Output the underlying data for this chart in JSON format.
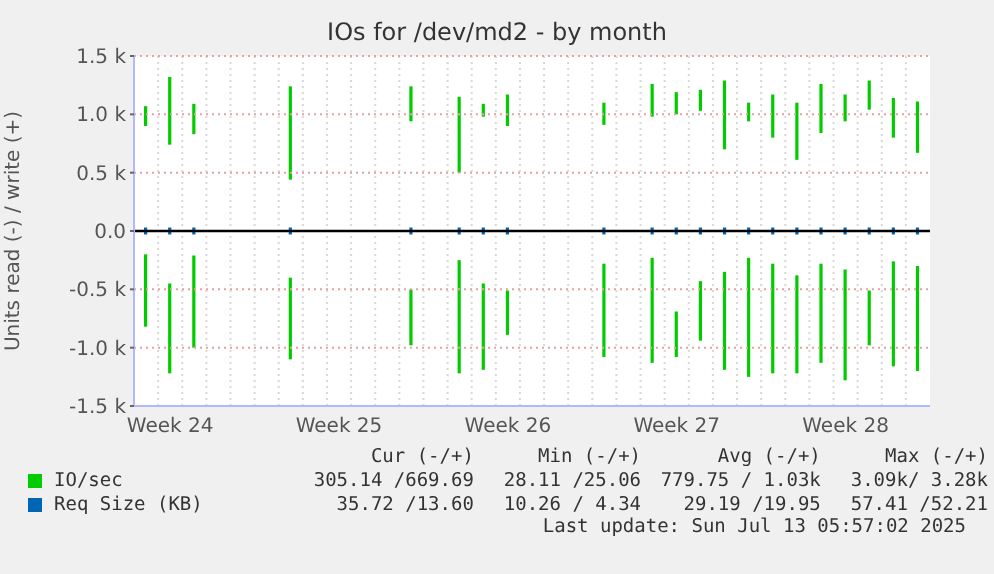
{
  "chart_data": {
    "type": "bar",
    "title": "IOs for /dev/md2 - by month",
    "ylabel": "Units read (-) / write (+)",
    "categories": [
      null,
      "Week 24",
      null,
      null,
      null,
      null,
      null,
      null,
      "Week 25",
      null,
      null,
      null,
      null,
      null,
      null,
      "Week 26",
      null,
      null,
      null,
      null,
      null,
      null,
      "Week 27",
      null,
      null,
      null,
      null,
      null,
      null,
      "Week 28",
      null,
      null,
      null
    ],
    "series": [
      {
        "name": "IO/sec",
        "color": "#00cc00",
        "base": [
          900,
          740,
          830,
          null,
          null,
          null,
          440,
          null,
          null,
          null,
          null,
          940,
          null,
          500,
          980,
          900,
          null,
          null,
          null,
          910,
          null,
          980,
          1000,
          1030,
          700,
          940,
          800,
          610,
          840,
          940,
          1040,
          800,
          670
        ],
        "values": [
          170,
          580,
          260,
          null,
          null,
          null,
          800,
          null,
          null,
          null,
          null,
          300,
          null,
          650,
          110,
          270,
          null,
          null,
          null,
          190,
          null,
          280,
          190,
          180,
          590,
          160,
          370,
          490,
          420,
          230,
          250,
          340,
          440
        ]
      },
      {
        "color": "#00cc00",
        "base": [
          -820,
          -1220,
          -1000,
          null,
          null,
          null,
          -1100,
          null,
          null,
          null,
          null,
          -980,
          null,
          -1220,
          -1190,
          -890,
          null,
          null,
          null,
          -1080,
          null,
          -1130,
          -1080,
          -940,
          -1190,
          -1250,
          -1220,
          -1220,
          -1130,
          -1280,
          -980,
          -1160,
          -1200
        ],
        "values": [
          620,
          770,
          790,
          null,
          null,
          null,
          700,
          null,
          null,
          null,
          null,
          480,
          null,
          970,
          740,
          380,
          null,
          null,
          null,
          800,
          null,
          900,
          390,
          510,
          840,
          1020,
          940,
          840,
          850,
          950,
          470,
          900,
          900
        ]
      },
      {
        "name": "Req Size (KB)",
        "color": "#0066b3",
        "base": [
          -30,
          -30,
          -30,
          null,
          null,
          null,
          -30,
          null,
          null,
          null,
          null,
          -30,
          null,
          -30,
          -30,
          -30,
          null,
          null,
          null,
          -30,
          null,
          -30,
          -30,
          -30,
          -30,
          -30,
          -30,
          -30,
          -30,
          -30,
          -30,
          -30,
          -30
        ],
        "values": [
          60,
          60,
          60,
          null,
          null,
          null,
          60,
          null,
          null,
          null,
          null,
          60,
          null,
          60,
          60,
          60,
          null,
          null,
          null,
          60,
          null,
          60,
          60,
          60,
          60,
          60,
          60,
          60,
          60,
          60,
          60,
          60,
          60
        ]
      }
    ],
    "ylim": [
      -1500,
      1500
    ],
    "yticks": [
      {
        "value": -1500,
        "label": "-1.5 k"
      },
      {
        "value": -1000,
        "label": "-1.0 k"
      },
      {
        "value": -500,
        "label": "-0.5 k"
      },
      {
        "value": 0,
        "label": "0.0"
      },
      {
        "value": 500,
        "label": "0.5 k"
      },
      {
        "value": 1000,
        "label": "1.0 k"
      },
      {
        "value": 1500,
        "label": "1.5 k"
      }
    ],
    "ref_lines": [
      {
        "axis": "y",
        "value": 0,
        "color": "#000000"
      }
    ],
    "grid": true,
    "legend": "bottom",
    "annotations": [
      "Cur (-/+)",
      "Min (-/+)",
      "Avg (-/+)",
      "Max (-/+)",
      "305.14 /669.69",
      "28.11 /25.06",
      "779.75 / 1.03k",
      "3.09k/ 3.28k",
      "35.72 /13.60",
      "10.26 / 4.34",
      "29.19 /19.95",
      "57.41 /52.21",
      "Last update: Sun Jul 13 05:57:02 2025"
    ]
  }
}
